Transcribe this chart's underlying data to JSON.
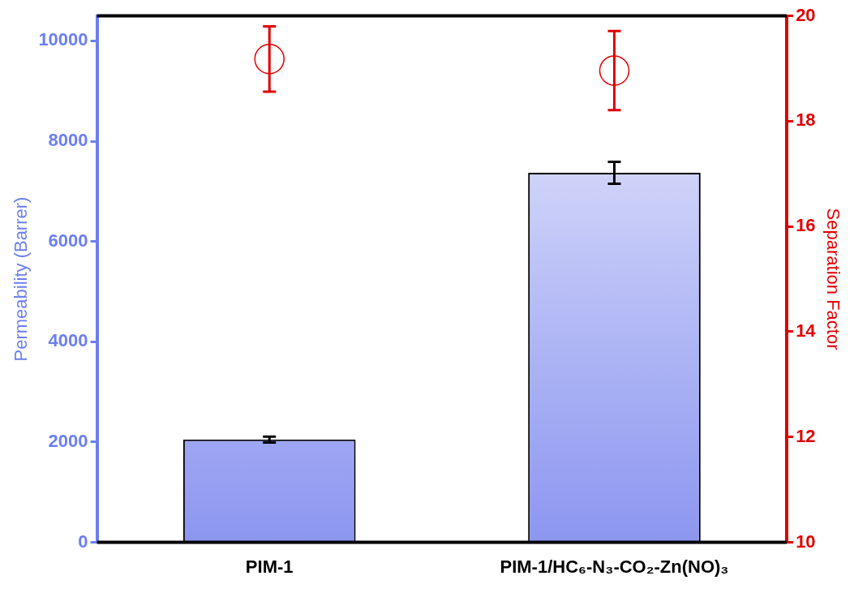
{
  "chart_data": {
    "type": "bar",
    "ylabel": "Permeability (Barrer)",
    "y2label": "Separation Factor",
    "categories": [
      "PIM-1",
      "PIM-1/HC₆-N₃-CO₂-Zn(NO)₃"
    ],
    "series": [
      {
        "type": "bar",
        "color": "#8c96f0",
        "values": [
          2050,
          7370
        ],
        "errors": [
          60,
          220
        ]
      },
      {
        "type": "scatter",
        "axis": "y2",
        "color": "#e00000",
        "marker": "circle",
        "values": [
          19.18,
          18.96
        ],
        "errors": [
          0.62,
          0.75
        ]
      }
    ],
    "ylim": [
      0,
      10500
    ],
    "yticks": [
      0,
      2000,
      4000,
      6000,
      8000,
      10000
    ],
    "y2lim": [
      10,
      20
    ],
    "y2ticks": [
      10,
      12,
      14,
      16,
      18,
      20
    ],
    "grid": false,
    "legend": false
  }
}
